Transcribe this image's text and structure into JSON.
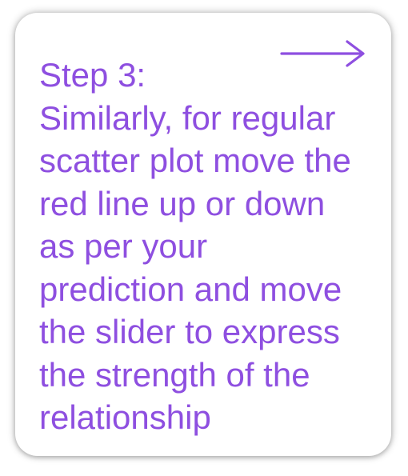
{
  "card": {
    "arrow_icon": "right-arrow-icon",
    "accent_color": "#8e4fe0",
    "lines": [
      "Step 3:",
      "Similarly, for regular",
      "scatter plot move the",
      "red line up or down",
      "as per your",
      "prediction and move",
      "the slider to express",
      "the strength of the",
      "relationship"
    ]
  }
}
